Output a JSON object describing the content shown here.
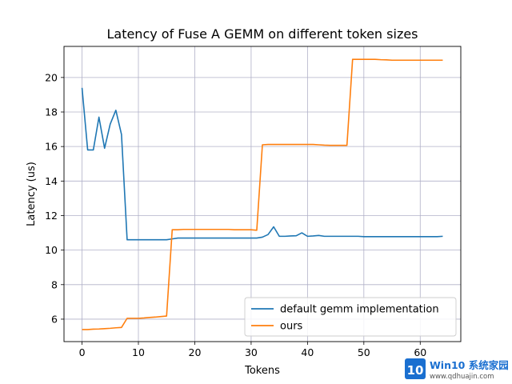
{
  "chart_data": {
    "type": "line",
    "title": "Latency of Fuse A GEMM on different token sizes",
    "xlabel": "Tokens",
    "ylabel": "Latency (us)",
    "xlim": [
      -3.2,
      67.2
    ],
    "ylim": [
      4.7,
      21.8
    ],
    "xticks": [
      0,
      10,
      20,
      30,
      40,
      50,
      60
    ],
    "yticks": [
      6,
      8,
      10,
      12,
      14,
      16,
      18,
      20
    ],
    "grid": true,
    "legend_position": "lower-right",
    "series": [
      {
        "name": "default gemm implementation",
        "color": "#1f77b4",
        "x": [
          0,
          1,
          2,
          3,
          4,
          5,
          6,
          7,
          8,
          9,
          10,
          11,
          12,
          13,
          14,
          15,
          16,
          17,
          18,
          19,
          20,
          21,
          22,
          23,
          24,
          25,
          26,
          27,
          28,
          29,
          30,
          31,
          32,
          33,
          34,
          35,
          36,
          37,
          38,
          39,
          40,
          41,
          42,
          43,
          44,
          45,
          46,
          47,
          48,
          49,
          50,
          51,
          52,
          53,
          54,
          55,
          56,
          57,
          58,
          59,
          60,
          61,
          62,
          63,
          64
        ],
        "y": [
          19.4,
          15.8,
          15.8,
          17.7,
          15.9,
          17.3,
          18.1,
          16.7,
          10.6,
          10.6,
          10.6,
          10.6,
          10.6,
          10.6,
          10.6,
          10.6,
          10.65,
          10.7,
          10.7,
          10.7,
          10.7,
          10.7,
          10.7,
          10.7,
          10.7,
          10.7,
          10.7,
          10.7,
          10.7,
          10.7,
          10.7,
          10.7,
          10.75,
          10.9,
          11.35,
          10.8,
          10.8,
          10.82,
          10.83,
          11.0,
          10.8,
          10.82,
          10.85,
          10.8,
          10.8,
          10.8,
          10.8,
          10.8,
          10.8,
          10.8,
          10.78,
          10.78,
          10.78,
          10.78,
          10.78,
          10.78,
          10.78,
          10.78,
          10.78,
          10.78,
          10.78,
          10.78,
          10.78,
          10.78,
          10.8
        ]
      },
      {
        "name": "ours",
        "color": "#ff7f0e",
        "x": [
          0,
          1,
          2,
          3,
          4,
          5,
          6,
          7,
          8,
          9,
          10,
          11,
          12,
          13,
          14,
          15,
          16,
          17,
          18,
          19,
          20,
          21,
          22,
          23,
          24,
          25,
          26,
          27,
          28,
          29,
          30,
          31,
          32,
          33,
          34,
          35,
          36,
          37,
          38,
          39,
          40,
          41,
          42,
          43,
          44,
          45,
          46,
          47,
          48,
          49,
          50,
          51,
          52,
          53,
          54,
          55,
          56,
          57,
          58,
          59,
          60,
          61,
          62,
          63,
          64
        ],
        "y": [
          5.4,
          5.4,
          5.42,
          5.43,
          5.45,
          5.47,
          5.5,
          5.52,
          6.05,
          6.05,
          6.05,
          6.07,
          6.1,
          6.12,
          6.15,
          6.18,
          11.18,
          11.18,
          11.2,
          11.2,
          11.2,
          11.2,
          11.2,
          11.2,
          11.2,
          11.2,
          11.2,
          11.18,
          11.18,
          11.18,
          11.18,
          11.15,
          16.1,
          16.12,
          16.12,
          16.12,
          16.12,
          16.12,
          16.12,
          16.12,
          16.12,
          16.12,
          16.1,
          16.08,
          16.07,
          16.07,
          16.07,
          16.07,
          21.05,
          21.05,
          21.05,
          21.05,
          21.05,
          21.03,
          21.02,
          21.0,
          21.0,
          21.0,
          21.0,
          21.0,
          21.0,
          21.0,
          21.0,
          21.0,
          21.0
        ]
      }
    ]
  },
  "watermark": {
    "badge_digits": "10",
    "brand": "Win10 系统家园",
    "url": "www.qdhuajin.com",
    "color": "#1a6fd0"
  }
}
